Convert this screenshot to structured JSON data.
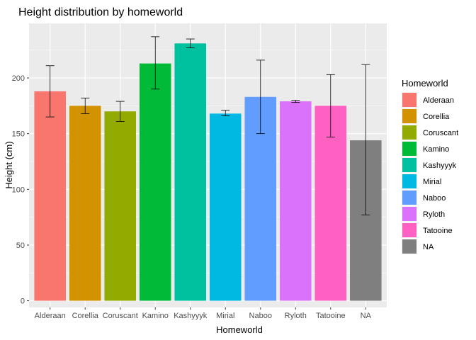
{
  "chart_data": {
    "type": "bar",
    "title": "Height distribution by homeworld",
    "xlabel": "Homeworld",
    "ylabel": "Height (cm)",
    "categories": [
      "Alderaan",
      "Corellia",
      "Coruscant",
      "Kamino",
      "Kashyyyk",
      "Mirial",
      "Naboo",
      "Ryloth",
      "Tatooine",
      "NA"
    ],
    "values": [
      188,
      175,
      170,
      213,
      231,
      168,
      183,
      179,
      175,
      144
    ],
    "error_low": [
      165,
      168,
      161,
      190,
      227,
      166,
      150,
      178,
      147,
      77
    ],
    "error_high": [
      211,
      182,
      179,
      237,
      235,
      171,
      216,
      180,
      203,
      212
    ],
    "ylim": [
      -6,
      249
    ],
    "yticks": [
      0,
      50,
      100,
      150,
      200
    ],
    "grid": true,
    "legend": {
      "title": "Homeworld",
      "placement": "right",
      "entries": [
        "Alderaan",
        "Corellia",
        "Coruscant",
        "Kamino",
        "Kashyyyk",
        "Mirial",
        "Naboo",
        "Ryloth",
        "Tatooine",
        "NA"
      ]
    },
    "colors": [
      "#F8766D",
      "#D89000",
      "#A3A500",
      "#39B600",
      "#00BF7D",
      "#00BFC4",
      "#00B0F6",
      "#9590FF",
      "#E76BF3",
      "#FF62BC"
    ],
    "colors_actual": [
      "#F8766D",
      "#D39200",
      "#93AA00",
      "#00BA38",
      "#00C19F",
      "#00B9E3",
      "#619CFF",
      "#DB72FB",
      "#FF61C3",
      "#7F7F7F"
    ]
  }
}
